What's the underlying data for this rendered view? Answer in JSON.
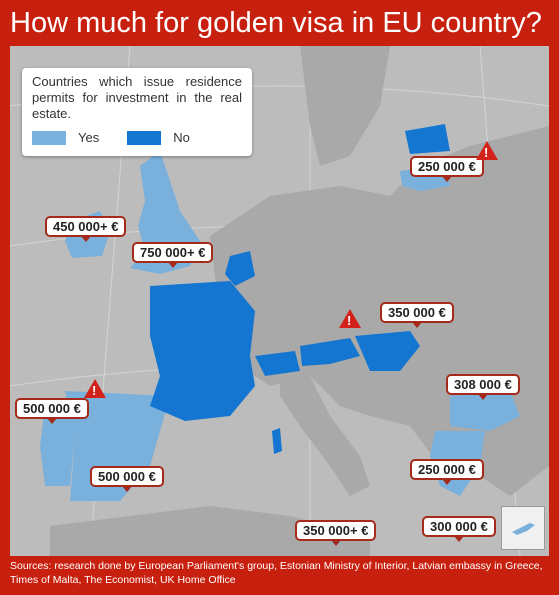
{
  "title": "How much for golden visa in EU country?",
  "legend": {
    "title": "Countries which issue residence permits for investment in the real estate.",
    "yes_label": "Yes",
    "no_label": "No"
  },
  "colors": {
    "background": "#c8200f",
    "yes": "#7ab0dc",
    "no": "#1476d0",
    "land": "#a9a9a9",
    "sea": "#bcbcbc"
  },
  "prices": {
    "latvia": "250 000 €",
    "ireland": "450 000+ €",
    "uk": "750 000+ €",
    "hungary": "350 000 €",
    "bulgaria": "308 000 €",
    "portugal": "500 000 €",
    "spain": "500 000 €",
    "greece": "250 000 €",
    "malta": "350 000+ €",
    "cyprus": "300 000 €"
  },
  "warnings": [
    "latvia",
    "austria",
    "portugal"
  ],
  "sources": "Sources: research done by European Parliament's group, Estonian Ministry of Interior, Latvian embassy in Greece, Times of Malta, The Economist, UK Home Office"
}
